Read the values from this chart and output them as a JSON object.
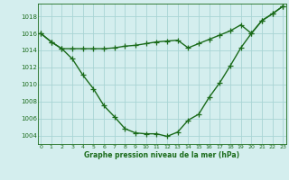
{
  "x": [
    0,
    1,
    2,
    3,
    4,
    5,
    6,
    7,
    8,
    9,
    10,
    11,
    12,
    13,
    14,
    15,
    16,
    17,
    18,
    19,
    20,
    21,
    22,
    23
  ],
  "line1": [
    1016,
    1015,
    1014.2,
    1014.2,
    1014.2,
    1014.2,
    1014.2,
    1014.3,
    1014.5,
    1014.6,
    1014.8,
    1015.0,
    1015.1,
    1015.2,
    1014.3,
    1014.8,
    1015.3,
    1015.8,
    1016.3,
    1017.0,
    1016.0,
    1017.5,
    1018.3,
    1019.2
  ],
  "line2": [
    1016,
    1015,
    1014.2,
    1013.0,
    1011.1,
    1009.5,
    1007.5,
    1006.2,
    1004.8,
    1004.3,
    1004.2,
    1004.2,
    1003.9,
    1004.4,
    1005.8,
    1006.5,
    1008.5,
    1010.2,
    1012.2,
    1014.3,
    1016.0,
    1017.5,
    1018.3,
    1019.2
  ],
  "ylabel_vals": [
    1004,
    1006,
    1008,
    1010,
    1012,
    1014,
    1016,
    1018
  ],
  "ylim": [
    1003,
    1019.5
  ],
  "xlim": [
    -0.3,
    23.3
  ],
  "line_color": "#1a6b1a",
  "bg_color": "#d4eeee",
  "grid_color": "#a8d4d4",
  "title": "Graphe pression niveau de la mer (hPa)",
  "title_color": "#1a6b1a",
  "marker": "+",
  "markersize": 4,
  "linewidth": 1.0,
  "tick_fontsize": 5,
  "title_fontsize": 5.5
}
